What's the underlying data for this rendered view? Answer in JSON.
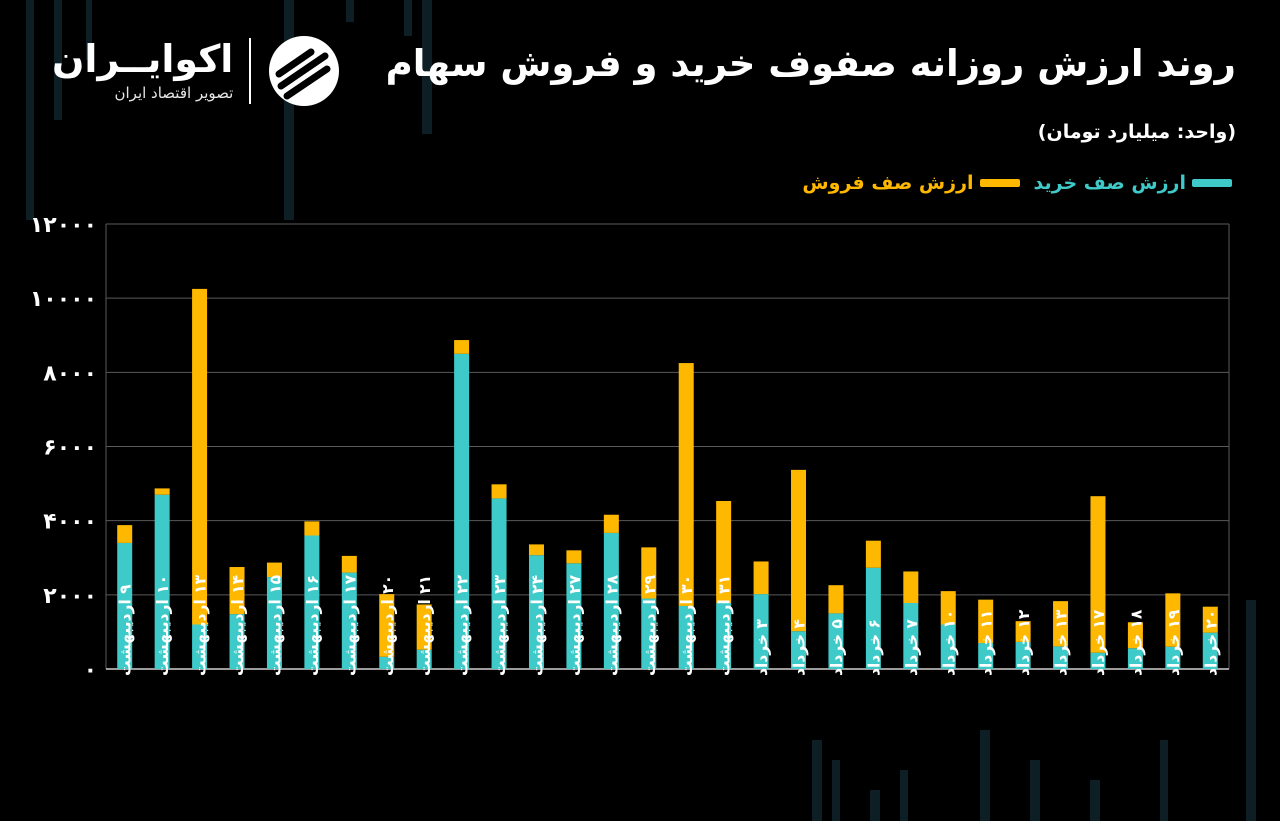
{
  "header": {
    "title": "روند ارزش روزانه صفوف خرید و فروش سهام",
    "unit": "(واحد: میلیارد تومان)"
  },
  "brand": {
    "name": "اکوایــران",
    "tagline": "تصویر اقتصاد ایران",
    "icon": "ecoiran-logo-icon"
  },
  "legend": {
    "buy_label": "ارزش صف خرید",
    "sell_label": "ارزش صف فروش"
  },
  "colors": {
    "buy": "#3ECAC8",
    "sell": "#FFB800",
    "background": "#000000",
    "grid": "#5a5a5a",
    "text": "#ffffff"
  },
  "chart_data": {
    "type": "bar",
    "stacked": true,
    "title": "روند ارزش روزانه صفوف خرید و فروش سهام",
    "ylabel": "میلیارد تومان",
    "ylim": [
      0,
      12000
    ],
    "yticks": [
      "۰",
      "۲۰۰۰",
      "۴۰۰۰",
      "۶۰۰۰",
      "۸۰۰۰",
      "۱۰۰۰۰",
      "۱۲۰۰۰"
    ],
    "ytick_values": [
      0,
      2000,
      4000,
      6000,
      8000,
      10000,
      12000
    ],
    "grid": true,
    "categories": [
      "۹ اردیبهشت",
      "۱۰ اردیبهشت",
      "۱۳ اردیبهشت",
      "۱۴ اردیبهشت",
      "۱۵ اردیبهشت",
      "۱۶ اردیبهشت",
      "۱۷ اردیبهشت",
      "۲۰ اردیبهشت",
      "۲۱ اردیبهشت",
      "۲۲ اردیبهشت",
      "۲۳ اردیبهشت",
      "۲۴ اردیبهشت",
      "۲۷ اردیبهشت",
      "۲۸ اردیبهشت",
      "۲۹ اردیبهشت",
      "۳۰ اردیبهشت",
      "۳۱ اردیبهشت",
      "۳ خرداد",
      "۴ خرداد",
      "۵ خرداد",
      "۶ خرداد",
      "۷ خرداد",
      "۱۰ خرداد",
      "۱۱ خرداد",
      "۱۲ خرداد",
      "۱۳ خرداد",
      "۱۷ خرداد",
      "۱۸ خرداد",
      "۱۹ خرداد",
      "۲۰ خرداد"
    ],
    "series": [
      {
        "name": "ارزش صف خرید",
        "values": [
          3400,
          4700,
          1200,
          1480,
          2480,
          3600,
          2600,
          330,
          520,
          8500,
          4600,
          3070,
          2850,
          3670,
          1900,
          1700,
          1780,
          2020,
          1020,
          1500,
          2730,
          1780,
          1200,
          700,
          730,
          610,
          440,
          560,
          600,
          980
        ]
      },
      {
        "name": "ارزش صف فروش",
        "values": [
          480,
          170,
          9050,
          1270,
          390,
          380,
          450,
          1690,
          1220,
          370,
          380,
          290,
          350,
          490,
          1380,
          6550,
          2750,
          880,
          4350,
          760,
          730,
          850,
          900,
          1170,
          560,
          1220,
          4220,
          700,
          1440,
          700
        ]
      }
    ]
  }
}
